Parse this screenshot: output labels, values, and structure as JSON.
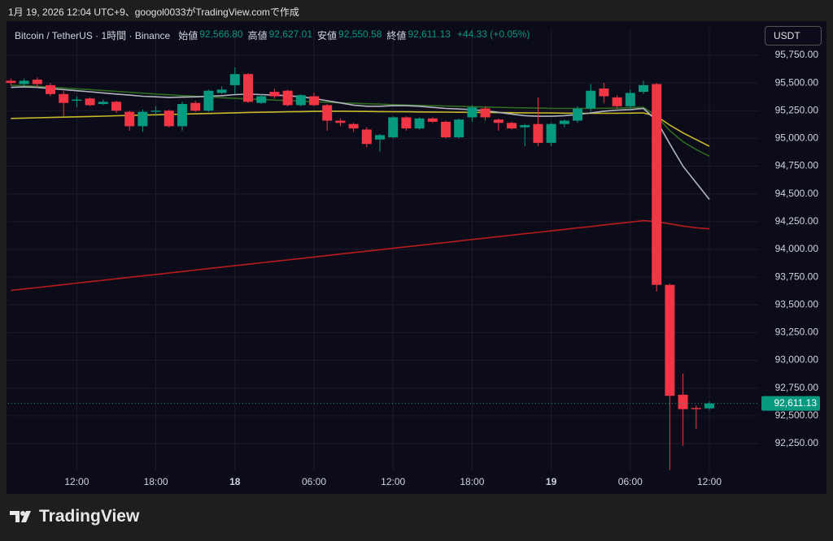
{
  "header_text": "1月 19, 2026 12:04 UTC+9、googol0033がTradingView.comで作成",
  "brand": "TradingView",
  "chart_data": {
    "type": "candlestick",
    "symbol": "Bitcoin / TetherUS · 1時間 · Binance",
    "ohlc_legend": [
      {
        "label": "始値",
        "value": "92,566.80"
      },
      {
        "label": "高値",
        "value": "92,627.01"
      },
      {
        "label": "安値",
        "value": "92,550.58"
      },
      {
        "label": "終値",
        "value": "92,611.13"
      }
    ],
    "change": "+44.33 (+0.05%)",
    "currency": "USDT",
    "up_color": "#089981",
    "down_color": "#f23645",
    "x": [
      "17 07:00",
      "17 08:00",
      "17 09:00",
      "17 10:00",
      "17 11:00",
      "17 12:00",
      "17 13:00",
      "17 14:00",
      "17 15:00",
      "17 16:00",
      "17 17:00",
      "17 18:00",
      "17 19:00",
      "17 20:00",
      "17 21:00",
      "17 22:00",
      "17 23:00",
      "18 00:00",
      "18 01:00",
      "18 02:00",
      "18 03:00",
      "18 04:00",
      "18 05:00",
      "18 06:00",
      "18 07:00",
      "18 08:00",
      "18 09:00",
      "18 10:00",
      "18 11:00",
      "18 12:00",
      "18 13:00",
      "18 14:00",
      "18 15:00",
      "18 16:00",
      "18 17:00",
      "18 18:00",
      "18 19:00",
      "18 20:00",
      "18 21:00",
      "18 22:00",
      "18 23:00",
      "19 00:00",
      "19 01:00",
      "19 02:00",
      "19 03:00",
      "19 04:00",
      "19 05:00",
      "19 06:00",
      "19 07:00",
      "19 08:00",
      "19 09:00",
      "19 10:00",
      "19 11:00",
      "19 12:00"
    ],
    "open": [
      95520,
      95490,
      95530,
      95480,
      95400,
      95340,
      95360,
      95310,
      95330,
      95240,
      95110,
      95240,
      95250,
      95110,
      95320,
      95250,
      95410,
      95480,
      95580,
      95320,
      95420,
      95430,
      95300,
      95380,
      95300,
      95160,
      95130,
      95080,
      94990,
      95010,
      95190,
      95090,
      95180,
      95150,
      95010,
      95190,
      95270,
      95170,
      95140,
      95100,
      95130,
      94960,
      95130,
      95160,
      95270,
      95450,
      95370,
      95290,
      95420,
      95490,
      93680,
      92690,
      92570,
      92566.8
    ],
    "high": [
      95540,
      95540,
      95550,
      95500,
      95430,
      95380,
      95370,
      95350,
      95340,
      95250,
      95260,
      95290,
      95260,
      95330,
      95340,
      95440,
      95470,
      95640,
      95590,
      95400,
      95450,
      95440,
      95400,
      95410,
      95310,
      95180,
      95140,
      95100,
      95040,
      95200,
      95200,
      95190,
      95190,
      95160,
      95180,
      95300,
      95290,
      95180,
      95150,
      95130,
      95370,
      95140,
      95170,
      95290,
      95490,
      95500,
      95390,
      95440,
      95520,
      95500,
      93690,
      92880,
      92590,
      92627.01
    ],
    "low": [
      95480,
      95470,
      95460,
      95380,
      95200,
      95280,
      95290,
      95300,
      95230,
      95070,
      95060,
      95200,
      95100,
      95070,
      95240,
      95240,
      95400,
      95400,
      95320,
      95310,
      95360,
      95290,
      95290,
      95290,
      95070,
      95110,
      95060,
      94920,
      94880,
      95000,
      95070,
      95080,
      95140,
      95000,
      95000,
      95150,
      95160,
      95070,
      95080,
      94930,
      94930,
      94930,
      95100,
      95140,
      95240,
      95320,
      95270,
      95260,
      95400,
      93620,
      92010,
      92230,
      92380,
      92550.58
    ],
    "close": [
      95500,
      95520,
      95490,
      95400,
      95320,
      95350,
      95300,
      95330,
      95250,
      95110,
      95240,
      95250,
      95110,
      95310,
      95250,
      95430,
      95440,
      95580,
      95330,
      95380,
      95380,
      95300,
      95390,
      95300,
      95160,
      95140,
      95090,
      94950,
      95030,
      95190,
      95090,
      95180,
      95150,
      95010,
      95170,
      95280,
      95190,
      95140,
      95090,
      95120,
      94960,
      95130,
      95160,
      95270,
      95430,
      95380,
      95290,
      95410,
      95480,
      93680,
      92680,
      92560,
      92560,
      92611.13
    ],
    "lines": [
      {
        "color": "#b71c1c",
        "values": [
          93630,
          93643,
          93656,
          93669,
          93682,
          93696,
          93709,
          93722,
          93735,
          93748,
          93761,
          93774,
          93787,
          93800,
          93813,
          93827,
          93840,
          93853,
          93866,
          93879,
          93892,
          93905,
          93918,
          93931,
          93944,
          93958,
          93971,
          93984,
          93997,
          94010,
          94023,
          94036,
          94049,
          94062,
          94075,
          94089,
          94102,
          94115,
          94128,
          94141,
          94154,
          94167,
          94180,
          94193,
          94206,
          94220,
          94233,
          94246,
          94259,
          94250,
          94230,
          94210,
          94195,
          94185
        ]
      },
      {
        "color": "#c9b92a",
        "values": [
          95180,
          95183,
          95186,
          95189,
          95192,
          95195,
          95198,
          95201,
          95204,
          95207,
          95210,
          95213,
          95216,
          95219,
          95222,
          95225,
          95228,
          95231,
          95234,
          95236,
          95238,
          95240,
          95242,
          95244,
          95245,
          95245,
          95244,
          95243,
          95242,
          95241,
          95240,
          95239,
          95238,
          95237,
          95236,
          95235,
          95234,
          95233,
          95232,
          95231,
          95230,
          95229,
          95228,
          95227,
          95226,
          95226,
          95227,
          95228,
          95230,
          95200,
          95120,
          95050,
          94990,
          94930
        ]
      },
      {
        "color": "#2e6b1f",
        "values": [
          95480,
          95475,
          95470,
          95462,
          95455,
          95447,
          95440,
          95432,
          95424,
          95416,
          95408,
          95400,
          95393,
          95386,
          95379,
          95373,
          95367,
          95361,
          95356,
          95351,
          95346,
          95341,
          95336,
          95331,
          95326,
          95321,
          95317,
          95313,
          95309,
          95305,
          95301,
          95298,
          95295,
          95292,
          95289,
          95286,
          95283,
          95280,
          95277,
          95275,
          95273,
          95271,
          95270,
          95270,
          95270,
          95272,
          95274,
          95277,
          95280,
          95200,
          95070,
          94970,
          94900,
          94840
        ]
      },
      {
        "color": "#b2b5be",
        "values": [
          95460,
          95465,
          95460,
          95450,
          95440,
          95430,
          95420,
          95410,
          95400,
          95390,
          95380,
          95375,
          95370,
          95372,
          95375,
          95380,
          95385,
          95395,
          95400,
          95395,
          95390,
          95385,
          95375,
          95360,
          95340,
          95320,
          95300,
          95290,
          95290,
          95295,
          95295,
          95290,
          95280,
          95270,
          95265,
          95260,
          95250,
          95235,
          95220,
          95205,
          95200,
          95200,
          95205,
          95215,
          95230,
          95245,
          95255,
          95260,
          95270,
          95160,
          94950,
          94750,
          94600,
          94450
        ]
      }
    ],
    "last_price": {
      "value": 92611.13,
      "label": "92,611.13"
    },
    "ylim": [
      91818,
      95845
    ],
    "yticks": [
      {
        "value": 92250,
        "label": "92,250.00"
      },
      {
        "value": 92500,
        "label": "92,500.00"
      },
      {
        "value": 92750,
        "label": "92,750.00"
      },
      {
        "value": 93000,
        "label": "93,000.00"
      },
      {
        "value": 93250,
        "label": "93,250.00"
      },
      {
        "value": 93500,
        "label": "93,500.00"
      },
      {
        "value": 93750,
        "label": "93,750.00"
      },
      {
        "value": 94000,
        "label": "94,000.00"
      },
      {
        "value": 94250,
        "label": "94,250.00"
      },
      {
        "value": 94500,
        "label": "94,500.00"
      },
      {
        "value": 94750,
        "label": "94,750.00"
      },
      {
        "value": 95000,
        "label": "95,000.00"
      },
      {
        "value": 95250,
        "label": "95,250.00"
      },
      {
        "value": 95500,
        "label": "95,500.00"
      },
      {
        "value": 95750,
        "label": "95,750.00"
      }
    ],
    "xticks": [
      {
        "value": "17 12:00",
        "label": "12:00"
      },
      {
        "value": "17 18:00",
        "label": "18:00"
      },
      {
        "value": "18 00:00",
        "label": "18"
      },
      {
        "value": "18 06:00",
        "label": "06:00"
      },
      {
        "value": "18 12:00",
        "label": "12:00"
      },
      {
        "value": "18 18:00",
        "label": "18:00"
      },
      {
        "value": "19 00:00",
        "label": "19"
      },
      {
        "value": "19 06:00",
        "label": "06:00"
      },
      {
        "value": "19 12:00",
        "label": "12:00"
      }
    ],
    "grid": true
  }
}
